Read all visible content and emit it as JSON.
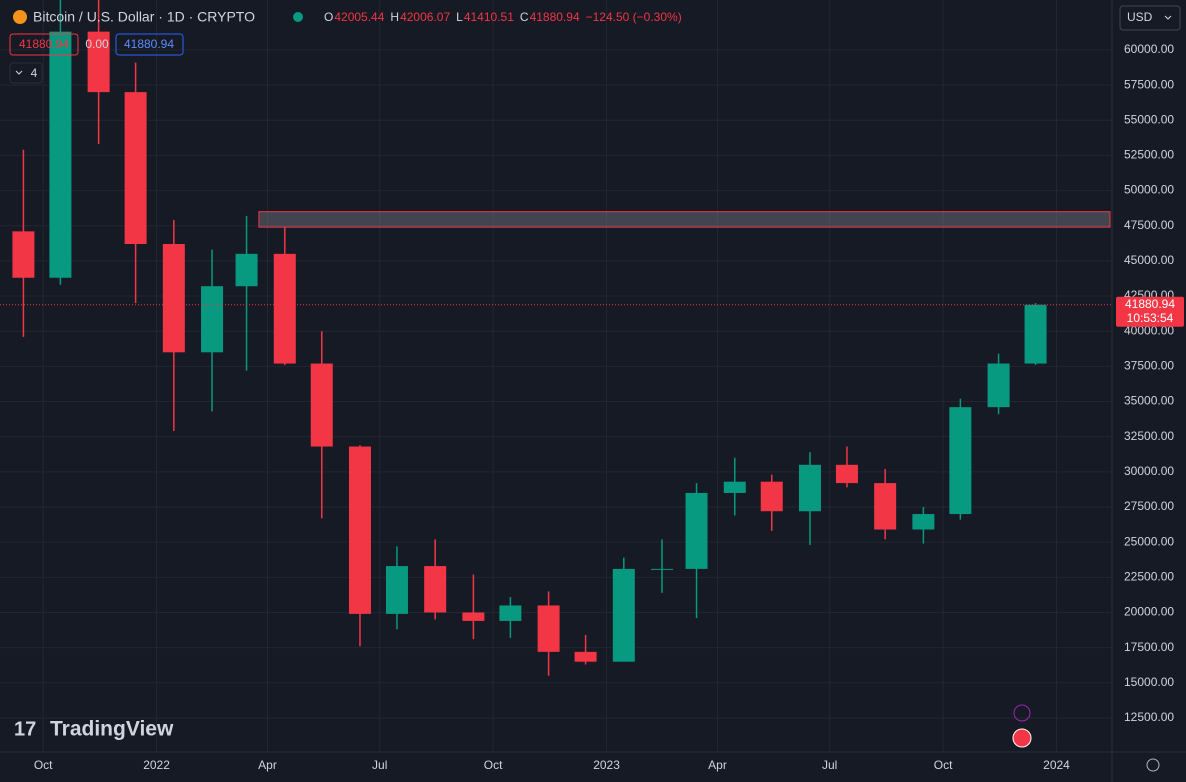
{
  "chart_data": {
    "type": "candlestick",
    "title": "Bitcoin / U.S. Dollar · 1D · CRYPTO",
    "ohlc_labels": [
      "O",
      "H",
      "L",
      "C"
    ],
    "ohlc_values": [
      42005.44,
      42006.07,
      41410.51,
      41880.94
    ],
    "change": "−124.50 (−0.30%)",
    "sell_price": 41880.94,
    "spread": "0.00",
    "buy_price": 41880.94,
    "indicator_count": "4",
    "currency": "USD",
    "last_price": 41880.94,
    "countdown": "10:53:54",
    "watermark": "TradingView",
    "up_color": "#089981",
    "down_color": "#f23645",
    "zone": [
      47400,
      48500
    ],
    "x": [
      "2021-09",
      "2021-10",
      "2021-11",
      "2021-12",
      "2022-01",
      "2022-02",
      "2022-03",
      "2022-04",
      "2022-05",
      "2022-06",
      "2022-07",
      "2022-08",
      "2022-09",
      "2022-10",
      "2022-11",
      "2022-12",
      "2023-01",
      "2023-02",
      "2023-03",
      "2023-04",
      "2023-05",
      "2023-06",
      "2023-07",
      "2023-08",
      "2023-09",
      "2023-10",
      "2023-11",
      "2023-12"
    ],
    "open": [
      47100,
      43800,
      61300,
      57000,
      46200,
      38500,
      43200,
      45500,
      37700,
      31800,
      19900,
      23300,
      20000,
      19400,
      20500,
      17200,
      16500,
      23100,
      23100,
      28500,
      29300,
      27200,
      30500,
      29200,
      25900,
      27000,
      34600,
      37700
    ],
    "high": [
      52900,
      67000,
      69000,
      59100,
      47900,
      45800,
      48200,
      47400,
      40000,
      31900,
      24700,
      25200,
      22700,
      21100,
      21500,
      18400,
      23900,
      25200,
      29200,
      31000,
      29800,
      31400,
      31800,
      30200,
      27500,
      35200,
      38400,
      42000
    ],
    "low": [
      39600,
      43300,
      53300,
      42000,
      32900,
      34300,
      37200,
      37600,
      26700,
      17600,
      18800,
      19500,
      18100,
      18200,
      15500,
      16300,
      16500,
      21400,
      19600,
      26900,
      25800,
      24800,
      28900,
      25200,
      24900,
      26600,
      34100,
      37600
    ],
    "close": [
      43800,
      61300,
      57000,
      46200,
      38500,
      43200,
      45500,
      37700,
      31800,
      19900,
      23300,
      20000,
      19400,
      20500,
      17200,
      16500,
      23100,
      23100,
      28500,
      29300,
      27200,
      30500,
      29200,
      25900,
      27000,
      34600,
      37700,
      41880.94
    ],
    "xlim": [
      "2021-08-27",
      "2024-02-15"
    ],
    "xticks": [
      {
        "value": "2021-10-01",
        "label": "Oct"
      },
      {
        "value": "2022-01-01",
        "label": "2022"
      },
      {
        "value": "2022-04-01",
        "label": "Apr"
      },
      {
        "value": "2022-07-01",
        "label": "Jul"
      },
      {
        "value": "2022-10-01",
        "label": "Oct"
      },
      {
        "value": "2023-01-01",
        "label": "2023"
      },
      {
        "value": "2023-04-01",
        "label": "Apr"
      },
      {
        "value": "2023-07-01",
        "label": "Jul"
      },
      {
        "value": "2023-10-01",
        "label": "Oct"
      },
      {
        "value": "2024-01-01",
        "label": "2024"
      }
    ],
    "ylim": [
      10080,
      63550
    ],
    "yticks": [
      {
        "value": 12500,
        "label": "12500.00"
      },
      {
        "value": 15000,
        "label": "15000.00"
      },
      {
        "value": 17500,
        "label": "17500.00"
      },
      {
        "value": 20000,
        "label": "20000.00"
      },
      {
        "value": 22500,
        "label": "22500.00"
      },
      {
        "value": 25000,
        "label": "25000.00"
      },
      {
        "value": 27500,
        "label": "27500.00"
      },
      {
        "value": 30000,
        "label": "30000.00"
      },
      {
        "value": 32500,
        "label": "32500.00"
      },
      {
        "value": 35000,
        "label": "35000.00"
      },
      {
        "value": 37500,
        "label": "37500.00"
      },
      {
        "value": 40000,
        "label": "40000.00"
      },
      {
        "value": 42500,
        "label": "42500.00"
      },
      {
        "value": 45000,
        "label": "45000.00"
      },
      {
        "value": 47500,
        "label": "47500.00"
      },
      {
        "value": 50000,
        "label": "50000.00"
      },
      {
        "value": 52500,
        "label": "52500.00"
      },
      {
        "value": 55000,
        "label": "55000.00"
      },
      {
        "value": 57500,
        "label": "57500.00"
      },
      {
        "value": 60000,
        "label": "60000.00"
      }
    ],
    "grid": true
  }
}
